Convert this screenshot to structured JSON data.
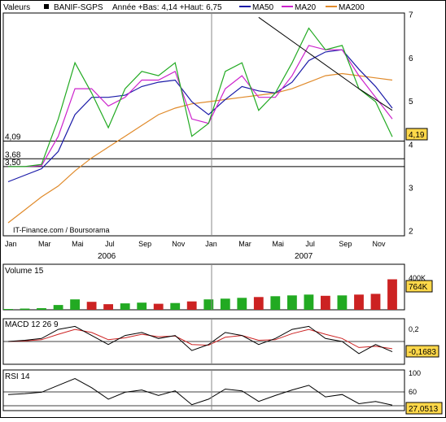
{
  "header": {
    "valeurs_label": "Valeurs",
    "symbol": "BANIF-SGPS",
    "range_text": "Année +Bas: 4,14 +Haut: 6,75",
    "legend": [
      {
        "name": "MA50",
        "color": "#1a1aa8"
      },
      {
        "name": "MA20",
        "color": "#cc22cc"
      },
      {
        "name": "MA200",
        "color": "#e08a2a"
      }
    ]
  },
  "credit": "IT-Finance.com / Boursorama",
  "colors": {
    "up": "#22aa22",
    "down": "#cc2222",
    "frame": "#000000",
    "grid": "#c8c8c8",
    "accent": "#ffd84a"
  },
  "chart_data": [
    {
      "type": "line",
      "title": "BANIF-SGPS",
      "ylim": [
        1.9,
        7.05
      ],
      "yticks": [
        "2",
        "3",
        "4",
        "5",
        "6",
        "7"
      ],
      "x_month_labels": [
        "Jan",
        "Mar",
        "Mai",
        "Jul",
        "Sep",
        "Nov",
        "Jan",
        "Mar",
        "Mai",
        "Jul",
        "Sep",
        "Nov"
      ],
      "x_year_labels": [
        "2006",
        "2007"
      ],
      "price_tag": "4,19",
      "support_levels": [
        {
          "label": "4,09",
          "value": 4.09
        },
        {
          "label": "3,68",
          "value": 3.68
        },
        {
          "label": "3,50",
          "value": 3.5
        }
      ],
      "x_months": [
        0,
        1,
        2,
        3,
        4,
        5,
        6,
        7,
        8,
        9,
        10,
        11,
        12,
        13,
        14,
        15,
        16,
        17,
        18,
        19,
        20,
        21,
        22,
        23
      ],
      "series": [
        {
          "name": "BANIF-SGPS",
          "values": [
            3.5,
            3.5,
            3.55,
            4.6,
            5.9,
            5.2,
            4.4,
            5.3,
            5.7,
            5.6,
            5.9,
            4.2,
            4.5,
            5.7,
            5.9,
            4.8,
            5.2,
            5.9,
            6.7,
            6.2,
            6.3,
            5.3,
            5.0,
            4.19
          ]
        },
        {
          "name": "MA20",
          "values": [
            3.5,
            3.5,
            3.52,
            4.2,
            5.3,
            5.3,
            4.9,
            5.1,
            5.5,
            5.5,
            5.7,
            4.6,
            4.5,
            5.3,
            5.6,
            5.1,
            5.1,
            5.6,
            6.3,
            6.2,
            6.2,
            5.6,
            5.1,
            4.6
          ]
        },
        {
          "name": "MA50",
          "values": [
            3.15,
            3.3,
            3.45,
            3.85,
            4.7,
            5.1,
            5.1,
            5.15,
            5.35,
            5.45,
            5.5,
            5.0,
            4.7,
            5.05,
            5.35,
            5.25,
            5.2,
            5.45,
            5.95,
            6.15,
            6.2,
            5.75,
            5.35,
            4.85
          ]
        },
        {
          "name": "MA200",
          "values": [
            2.2,
            2.5,
            2.8,
            3.05,
            3.4,
            3.7,
            3.95,
            4.2,
            4.45,
            4.7,
            4.85,
            4.95,
            5.0,
            5.05,
            5.1,
            5.15,
            5.2,
            5.3,
            5.45,
            5.6,
            5.65,
            5.6,
            5.55,
            5.5
          ]
        },
        {
          "name": "Trend",
          "values": [
            6.95,
            5.3,
            4.8
          ]
        }
      ]
    },
    {
      "type": "bar",
      "title": "Volume 15",
      "yticks": [
        "400K"
      ],
      "value_tag": "764K",
      "ylim": [
        0,
        1100
      ],
      "values_k": [
        20,
        30,
        40,
        120,
        260,
        200,
        140,
        160,
        180,
        150,
        170,
        210,
        260,
        280,
        300,
        320,
        340,
        360,
        380,
        350,
        360,
        380,
        400,
        764
      ]
    },
    {
      "type": "line",
      "title": "MACD 12 26 9",
      "yticks": [
        "0,2"
      ],
      "value_tag": "-0,1683",
      "ylim": [
        -0.35,
        0.35
      ],
      "series": [
        {
          "name": "MACD",
          "values": [
            0.0,
            0.02,
            0.05,
            0.2,
            0.25,
            0.1,
            -0.05,
            0.1,
            0.15,
            0.05,
            0.1,
            -0.15,
            -0.05,
            0.15,
            0.1,
            -0.05,
            0.05,
            0.2,
            0.25,
            0.05,
            0.0,
            -0.2,
            -0.05,
            -0.17
          ]
        },
        {
          "name": "Signal",
          "values": [
            0.0,
            0.01,
            0.03,
            0.12,
            0.2,
            0.15,
            0.03,
            0.06,
            0.12,
            0.08,
            0.09,
            -0.05,
            -0.06,
            0.07,
            0.1,
            0.02,
            0.03,
            0.13,
            0.2,
            0.12,
            0.05,
            -0.1,
            -0.08,
            -0.12
          ]
        }
      ]
    },
    {
      "type": "line",
      "title": "RSI 14",
      "yticks": [
        "100",
        "60"
      ],
      "value_tag": "27,0513",
      "ylim": [
        15,
        100
      ],
      "series": [
        {
          "name": "RSI",
          "values": [
            50,
            52,
            55,
            70,
            85,
            65,
            40,
            55,
            60,
            48,
            58,
            28,
            40,
            62,
            58,
            35,
            48,
            60,
            70,
            45,
            50,
            30,
            35,
            27
          ]
        }
      ]
    }
  ]
}
